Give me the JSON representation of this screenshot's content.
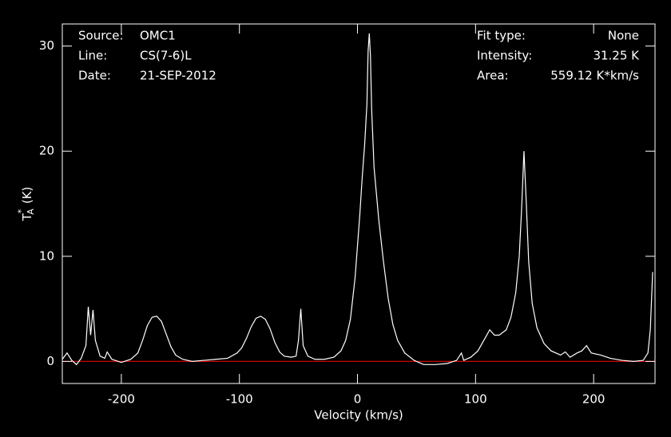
{
  "chart_data": {
    "type": "line",
    "info_left": [
      {
        "label": "Source:",
        "value": "OMC1"
      },
      {
        "label": "Line:",
        "value": "CS(7-6)L"
      },
      {
        "label": "Date:",
        "value": "21-SEP-2012"
      }
    ],
    "info_right": [
      {
        "label": "Fit type:",
        "value": "None"
      },
      {
        "label": "Intensity:",
        "value": "31.25 K"
      },
      {
        "label": "Area:",
        "value": "559.12 K*km/s"
      }
    ],
    "x_label": "Velocity (km/s)",
    "y_label": {
      "base": "T",
      "sub": "A",
      "sup": "*",
      "unit": "(K)"
    },
    "x": [
      -250,
      -246,
      -242,
      -238,
      -234,
      -230,
      -228,
      -226,
      -224,
      -222,
      -218,
      -214,
      -212,
      -208,
      -200,
      -192,
      -186,
      -182,
      -178,
      -174,
      -170,
      -166,
      -162,
      -158,
      -154,
      -148,
      -140,
      -130,
      -120,
      -110,
      -102,
      -98,
      -94,
      -90,
      -86,
      -82,
      -78,
      -74,
      -70,
      -66,
      -62,
      -56,
      -52,
      -50,
      -48,
      -46,
      -42,
      -36,
      -28,
      -20,
      -14,
      -10,
      -6,
      -2,
      2,
      4,
      6,
      8,
      9,
      10,
      11,
      12,
      14,
      18,
      22,
      26,
      30,
      34,
      40,
      48,
      56,
      66,
      76,
      84,
      88,
      90,
      96,
      102,
      108,
      112,
      116,
      120,
      126,
      130,
      134,
      137,
      139,
      141,
      143,
      145,
      148,
      152,
      158,
      164,
      172,
      176,
      180,
      186,
      190,
      194,
      198,
      206,
      214,
      224,
      234,
      242,
      246,
      248,
      250
    ],
    "series": [
      {
        "color": "#ffffff",
        "values": [
          0.2,
          0.8,
          0.1,
          -0.3,
          0.3,
          1.5,
          5.2,
          2.5,
          4.9,
          2.0,
          0.5,
          0.3,
          0.9,
          0.2,
          -0.1,
          0.2,
          0.8,
          2.0,
          3.4,
          4.2,
          4.3,
          3.8,
          2.6,
          1.4,
          0.6,
          0.2,
          0.0,
          0.1,
          0.2,
          0.3,
          0.8,
          1.3,
          2.2,
          3.3,
          4.1,
          4.3,
          4.0,
          3.1,
          1.8,
          0.9,
          0.5,
          0.4,
          0.5,
          2.0,
          5.0,
          1.5,
          0.5,
          0.2,
          0.2,
          0.4,
          1.0,
          2.0,
          4.0,
          8.0,
          14.0,
          17.5,
          20.5,
          24.5,
          29.5,
          31.2,
          29.0,
          24.0,
          18.5,
          13.5,
          9.5,
          6.0,
          3.5,
          2.0,
          0.8,
          0.1,
          -0.3,
          -0.3,
          -0.2,
          0.1,
          0.8,
          0.1,
          0.4,
          1.0,
          2.2,
          3.0,
          2.5,
          2.5,
          3.0,
          4.2,
          6.5,
          10.0,
          14.5,
          20.0,
          15.0,
          9.5,
          5.5,
          3.2,
          1.7,
          1.0,
          0.6,
          0.9,
          0.4,
          0.8,
          1.0,
          1.5,
          0.8,
          0.6,
          0.3,
          0.1,
          0.0,
          0.1,
          0.8,
          3.0,
          8.5
        ]
      }
    ],
    "reference_line": {
      "value": 0,
      "color": "#d00000"
    },
    "xlim": [
      -250,
      252
    ],
    "ylim": [
      -2.1,
      32.1
    ],
    "xticks": [
      -200,
      -100,
      0,
      100,
      200
    ],
    "yticks": [
      0,
      10,
      20,
      30
    ],
    "axis_color": "#ffffff"
  }
}
